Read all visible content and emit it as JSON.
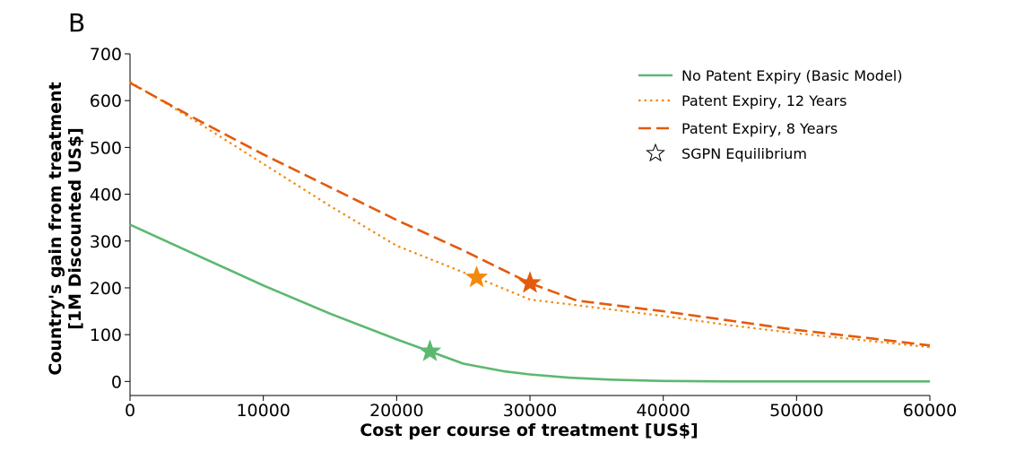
{
  "panel_label": "B",
  "chart_data": {
    "type": "line",
    "title": "",
    "xlabel": "Cost per course of treatment [US$]",
    "ylabel_line1": "Country's gain from treatment",
    "ylabel_line2": "[1M Discounted US$]",
    "xlim": [
      0,
      60000
    ],
    "ylim": [
      -30,
      700
    ],
    "x_ticks": [
      0,
      10000,
      20000,
      30000,
      40000,
      50000,
      60000
    ],
    "y_ticks": [
      0,
      100,
      200,
      300,
      400,
      500,
      600,
      700
    ],
    "grid": false,
    "legend_position": "top-right",
    "series": [
      {
        "name": "No Patent Expiry (Basic Model)",
        "color": "#5cb870",
        "style": "solid",
        "x": [
          0,
          5000,
          10000,
          15000,
          20000,
          22500,
          25000,
          28000,
          30000,
          33000,
          36000,
          40000,
          45000,
          50000,
          55000,
          60000
        ],
        "y": [
          335,
          270,
          205,
          145,
          90,
          64,
          38,
          22,
          15,
          8,
          4,
          1,
          0,
          0,
          0,
          0
        ]
      },
      {
        "name": "Patent Expiry, 12 Years",
        "color": "#f5880e",
        "style": "dotted",
        "x": [
          0,
          5000,
          10000,
          15000,
          20000,
          26000,
          30000,
          33500,
          40000,
          45000,
          50000,
          55000,
          60000
        ],
        "y": [
          640,
          555,
          465,
          375,
          290,
          222,
          175,
          163,
          140,
          120,
          103,
          88,
          73
        ]
      },
      {
        "name": "Patent Expiry, 8 Years",
        "color": "#e35a0c",
        "style": "dashed",
        "x": [
          0,
          5000,
          10000,
          15000,
          20000,
          25000,
          30000,
          33500,
          40000,
          45000,
          50000,
          55000,
          60000
        ],
        "y": [
          638,
          560,
          485,
          415,
          345,
          280,
          210,
          173,
          150,
          130,
          110,
          94,
          77
        ]
      }
    ],
    "markers": [
      {
        "series": "No Patent Expiry (Basic Model)",
        "x": 22500,
        "y": 64,
        "color": "#5cb870"
      },
      {
        "series": "Patent Expiry, 12 Years",
        "x": 26000,
        "y": 222,
        "color": "#f5880e"
      },
      {
        "series": "Patent Expiry, 8 Years",
        "x": 30000,
        "y": 210,
        "color": "#e35a0c"
      }
    ],
    "legend": [
      {
        "label": "No Patent Expiry (Basic Model)",
        "kind": "solid",
        "color": "#5cb870"
      },
      {
        "label": "Patent Expiry, 12 Years",
        "kind": "dotted",
        "color": "#f5880e"
      },
      {
        "label": "Patent Expiry, 8 Years",
        "kind": "dashed",
        "color": "#e35a0c"
      },
      {
        "label": "SGPN Equilibrium",
        "kind": "star",
        "color": "#000000"
      }
    ]
  }
}
